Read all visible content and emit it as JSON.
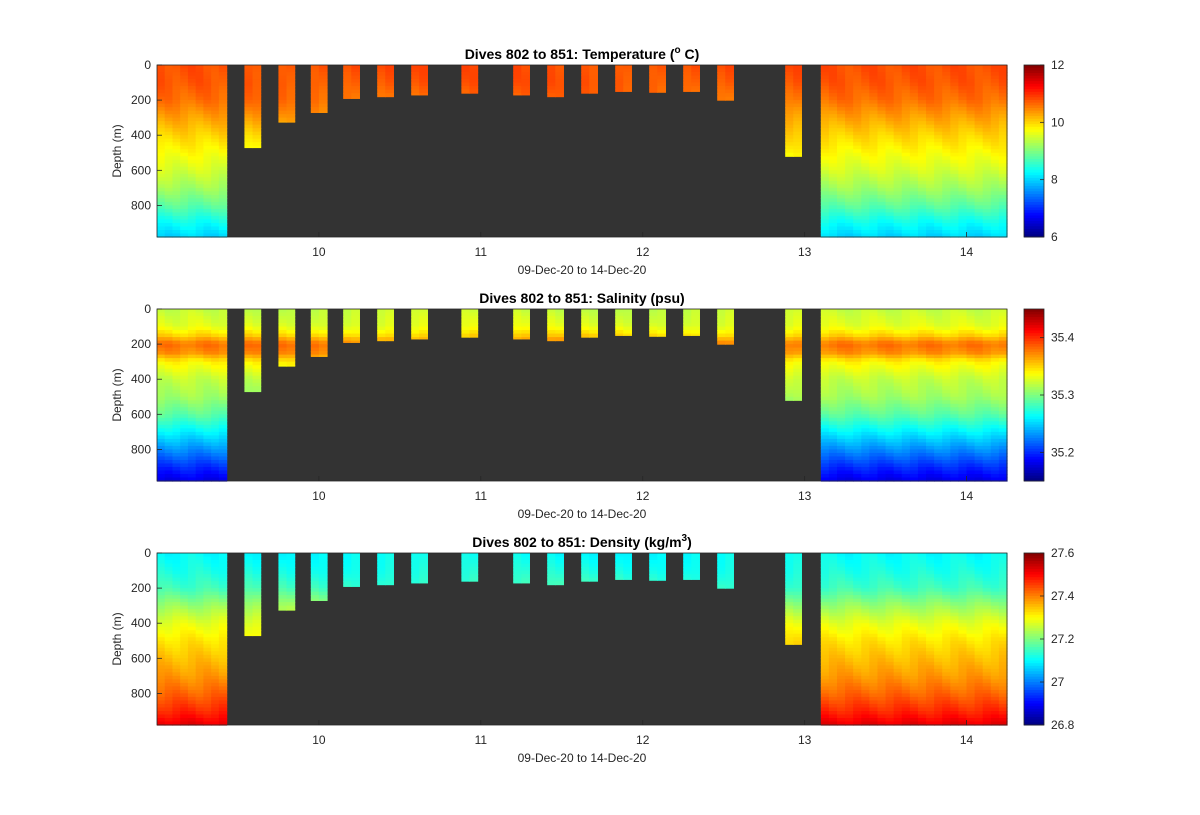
{
  "colors": {
    "background": "#333333",
    "axis": "#262626"
  },
  "colormap": "jet",
  "x_range": [
    9.0,
    14.25
  ],
  "y_range": [
    0,
    980
  ],
  "x_ticks": [
    "10",
    "11",
    "12",
    "13",
    "14"
  ],
  "y_ticks": [
    "0",
    "200",
    "400",
    "600",
    "800"
  ],
  "xlabel": "09-Dec-20 to 14-Dec-20",
  "ylabel": "Depth (m)",
  "dives": [
    {
      "x0": 9.0,
      "x1": 9.43,
      "depth": 980
    },
    {
      "x0": 9.54,
      "x1": 9.64,
      "depth": 470
    },
    {
      "x0": 9.75,
      "x1": 9.85,
      "depth": 325
    },
    {
      "x0": 9.95,
      "x1": 10.05,
      "depth": 270
    },
    {
      "x0": 10.15,
      "x1": 10.25,
      "depth": 190
    },
    {
      "x0": 10.36,
      "x1": 10.46,
      "depth": 180
    },
    {
      "x0": 10.57,
      "x1": 10.67,
      "depth": 170
    },
    {
      "x0": 10.88,
      "x1": 10.98,
      "depth": 160
    },
    {
      "x0": 11.2,
      "x1": 11.3,
      "depth": 170
    },
    {
      "x0": 11.41,
      "x1": 11.51,
      "depth": 180
    },
    {
      "x0": 11.62,
      "x1": 11.72,
      "depth": 160
    },
    {
      "x0": 11.83,
      "x1": 11.93,
      "depth": 150
    },
    {
      "x0": 12.04,
      "x1": 12.14,
      "depth": 155
    },
    {
      "x0": 12.25,
      "x1": 12.35,
      "depth": 150
    },
    {
      "x0": 12.46,
      "x1": 12.56,
      "depth": 200
    },
    {
      "x0": 12.88,
      "x1": 12.98,
      "depth": 520
    },
    {
      "x0": 13.1,
      "x1": 14.25,
      "depth": 980
    }
  ],
  "chart_data": [
    {
      "type": "heatmap",
      "title_main": "Dives 802 to 851: Temperature (",
      "title_sup": "o",
      "title_end": " C)",
      "variable": "temperature",
      "clim": [
        6,
        12
      ],
      "colorbar_ticks": [
        "12",
        "10",
        "8",
        "6"
      ],
      "colorbar_tick_values": [
        12,
        10,
        8,
        6
      ],
      "profile": {
        "depth": [
          0,
          100,
          200,
          300,
          400,
          500,
          600,
          700,
          800,
          900,
          980
        ],
        "value": [
          10.8,
          10.75,
          10.6,
          10.3,
          10.0,
          9.75,
          9.5,
          9.2,
          8.8,
          8.3,
          8.0
        ]
      }
    },
    {
      "type": "heatmap",
      "title_main": "Dives 802 to 851: Salinity (psu)",
      "title_sup": "",
      "title_end": "",
      "variable": "salinity",
      "clim": [
        35.15,
        35.45
      ],
      "colorbar_ticks": [
        "35.4",
        "35.3",
        "35.2"
      ],
      "colorbar_tick_values": [
        35.4,
        35.3,
        35.2
      ],
      "profile": {
        "depth": [
          0,
          100,
          150,
          200,
          250,
          300,
          400,
          500,
          600,
          700,
          800,
          900,
          980
        ],
        "value": [
          35.32,
          35.33,
          35.35,
          35.38,
          35.37,
          35.34,
          35.32,
          35.31,
          35.29,
          35.26,
          35.23,
          35.2,
          35.18
        ]
      }
    },
    {
      "type": "heatmap",
      "title_main": "Dives 802 to 851: Density (kg/m",
      "title_sup": "3",
      "title_end": ")",
      "variable": "density",
      "clim": [
        26.8,
        27.6
      ],
      "colorbar_ticks": [
        "27.6",
        "27.4",
        "27.2",
        "27",
        "26.8"
      ],
      "colorbar_tick_values": [
        27.6,
        27.4,
        27.2,
        27.0,
        26.8
      ],
      "profile": {
        "depth": [
          0,
          100,
          200,
          300,
          400,
          500,
          600,
          700,
          800,
          900,
          980
        ],
        "value": [
          27.1,
          27.12,
          27.15,
          27.22,
          27.28,
          27.32,
          27.35,
          27.38,
          27.42,
          27.47,
          27.52
        ]
      }
    }
  ]
}
